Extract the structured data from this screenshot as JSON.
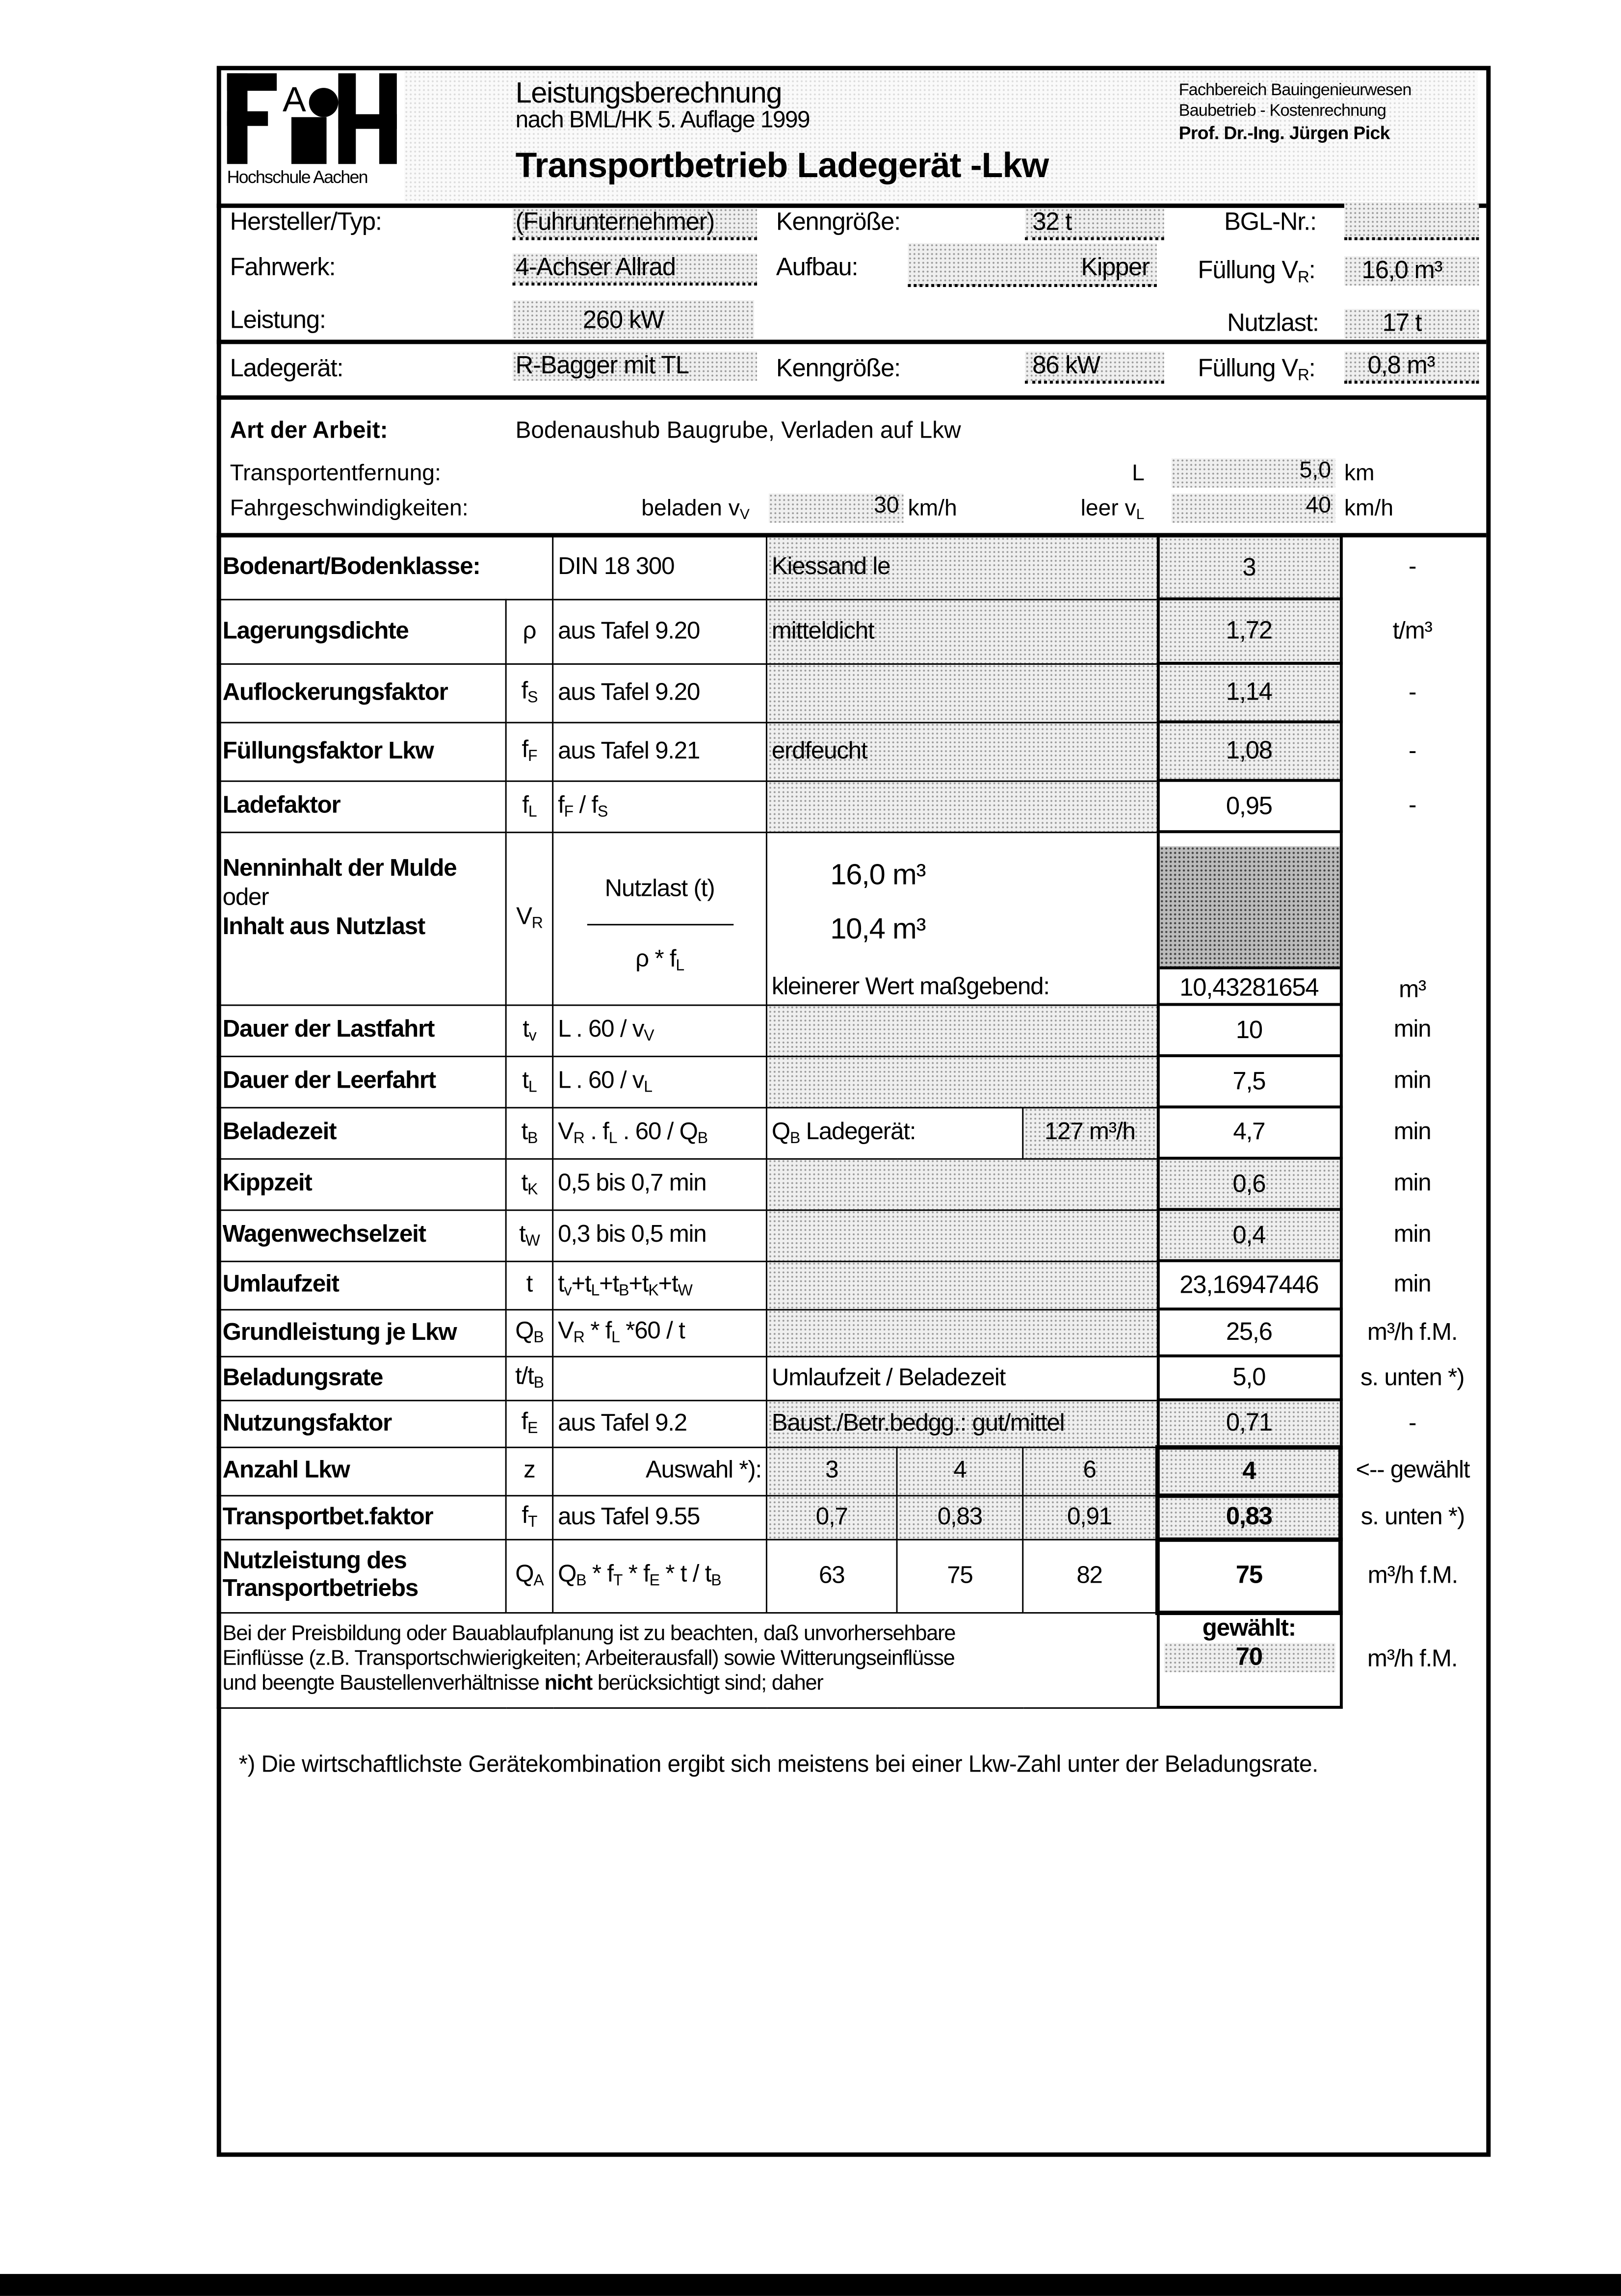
{
  "logo": {
    "letters": "FACH",
    "caption": "Hochschule Aachen"
  },
  "header": {
    "line1": "Leistungsberechnung",
    "line2": "nach BML/HK 5. Auflage 1999",
    "title": "Transportbetrieb Ladegerät -Lkw",
    "dept1": "Fachbereich Bauingenieurwesen",
    "dept2": "Baubetrieb  -  Kostenrechnung",
    "dept3": "Prof. Dr.-Ing. Jürgen Pick"
  },
  "vehicle": {
    "hersteller_label": "Hersteller/Typ:",
    "hersteller": "(Fuhrunternehmer)",
    "kenngroesse_label": "Kenngröße:",
    "kenngroesse": "32  t",
    "bgl_label": "BGL-Nr.:",
    "bgl": "",
    "fahrwerk_label": "Fahrwerk:",
    "fahrwerk": "4-Achser Allrad",
    "aufbau_label": "Aufbau:",
    "aufbau": "Kipper",
    "fuellung_label": "Füllung V",
    "fuellung_sub": "R",
    "fuellung": "16,0  m³",
    "leistung_label": "Leistung:",
    "leistung": "260  kW",
    "nutzlast_label": "Nutzlast:",
    "nutzlast": "17  t"
  },
  "loader": {
    "label": "Ladegerät:",
    "value": "R-Bagger mit TL",
    "kenngroesse_label": "Kenngröße:",
    "kenngroesse": "86  kW",
    "fuellung_label": "Füllung V",
    "fuellung_sub": "R",
    "fuellung": "0,8  m³"
  },
  "work": {
    "art_label": "Art der Arbeit:",
    "art": "Bodenaushub Baugrube, Verladen auf Lkw",
    "entfernung_label": "Transportentfernung:",
    "L_label": "L",
    "L": "5,0",
    "L_unit": "km",
    "speed_label": "Fahrgeschwindigkeiten:",
    "beladen_label": "beladen v",
    "beladen_sub": "V",
    "beladen": "30",
    "beladen_unit": "km/h",
    "leer_label": "leer v",
    "leer_sub": "L",
    "leer": "40",
    "leer_unit": "km/h"
  },
  "rows": [
    {
      "label": "Bodenart/Bodenklasse:",
      "span_label": true,
      "formula": [
        [
          "DIN 18 300",
          ""
        ]
      ],
      "note": "Kiessand le",
      "note_shaded": true,
      "value": "3",
      "value_shaded": true,
      "unit": "-"
    },
    {
      "label": "Lagerungsdichte",
      "sym": [
        [
          "ρ",
          ""
        ]
      ],
      "formula": [
        [
          "aus Tafel 9.20",
          ""
        ]
      ],
      "note": "mitteldicht",
      "note_shaded": true,
      "value": "1,72",
      "value_shaded": true,
      "unit": "t/m³"
    },
    {
      "label": "Auflockerungsfaktor",
      "sym": [
        [
          "f",
          "S"
        ]
      ],
      "formula": [
        [
          "aus Tafel 9.20",
          ""
        ]
      ],
      "note": "",
      "note_shaded": true,
      "value": "1,14",
      "value_shaded": true,
      "unit": "-"
    },
    {
      "label": "Füllungsfaktor Lkw",
      "sym": [
        [
          "f",
          "F"
        ]
      ],
      "formula": [
        [
          "aus Tafel 9.21",
          ""
        ]
      ],
      "note": "erdfeucht",
      "note_shaded": true,
      "value": "1,08",
      "value_shaded": true,
      "unit": "-"
    },
    {
      "label": "Ladefaktor",
      "sym": [
        [
          "f",
          "L"
        ]
      ],
      "formula": [
        [
          "f",
          "F"
        ],
        [
          " / f",
          "S"
        ]
      ],
      "note": "",
      "note_shaded": true,
      "value": "0,95",
      "unit": "-"
    },
    {
      "type": "nenn",
      "label1": "Nenninhalt der Mulde",
      "label2": "oder",
      "label3": "Inhalt aus Nutzlast",
      "sym": [
        [
          "V",
          "R"
        ]
      ],
      "frac_top": "Nutzlast (t)",
      "frac_bot": [
        [
          "ρ * f",
          "L"
        ]
      ],
      "v1": "16,0 m³",
      "v2": "10,4 m³",
      "note": "kleinerer Wert maßgebend:",
      "value": "10,43281654",
      "unit": "m³"
    },
    {
      "label": "Dauer der Lastfahrt",
      "sym": [
        [
          "t",
          "v"
        ]
      ],
      "formula": [
        [
          "L . 60 / v",
          "V"
        ]
      ],
      "note": "",
      "note_shaded": true,
      "value": "10",
      "unit": "min"
    },
    {
      "label": "Dauer der Leerfahrt",
      "sym": [
        [
          "t",
          "L"
        ]
      ],
      "formula": [
        [
          "L . 60 / v",
          "L"
        ]
      ],
      "note": "",
      "note_shaded": true,
      "value": "7,5",
      "unit": "min"
    },
    {
      "label": "Beladezeit",
      "sym": [
        [
          "t",
          "B"
        ]
      ],
      "formula": [
        [
          "V",
          "R"
        ],
        [
          " . f",
          "L"
        ],
        [
          " . 60 / Q",
          "B"
        ]
      ],
      "note_parts": [
        [
          "Q",
          "B"
        ],
        [
          " Ladegerät:",
          ""
        ]
      ],
      "note_value": "127  m³/h",
      "value": "4,7",
      "unit": "min"
    },
    {
      "label": "Kippzeit",
      "sym": [
        [
          "t",
          "K"
        ]
      ],
      "formula": [
        [
          "0,5 bis 0,7 min",
          ""
        ]
      ],
      "note": "",
      "note_shaded": true,
      "value": "0,6",
      "value_shaded": true,
      "unit": "min"
    },
    {
      "label": "Wagenwechselzeit",
      "sym": [
        [
          "t",
          "W"
        ]
      ],
      "formula": [
        [
          "0,3 bis 0,5 min",
          ""
        ]
      ],
      "note": "",
      "note_shaded": true,
      "value": "0,4",
      "value_shaded": true,
      "unit": "min"
    },
    {
      "label": "Umlaufzeit",
      "sym": [
        [
          "t",
          ""
        ]
      ],
      "formula": [
        [
          "t",
          "v"
        ],
        [
          "+t",
          "L"
        ],
        [
          "+t",
          "B"
        ],
        [
          "+t",
          "K"
        ],
        [
          "+t",
          "W"
        ]
      ],
      "note": "",
      "note_shaded": true,
      "value": "23,16947446",
      "unit": "min"
    },
    {
      "label": "Grundleistung je Lkw",
      "sym": [
        [
          "Q",
          "B"
        ]
      ],
      "formula": [
        [
          "V",
          "R"
        ],
        [
          " * f",
          "L"
        ],
        [
          " *60 / t",
          ""
        ]
      ],
      "note": "",
      "note_shaded": true,
      "value": "25,6",
      "unit": "m³/h f.M."
    },
    {
      "label": "Beladungsrate",
      "sym": [
        [
          "t/t",
          "B"
        ]
      ],
      "formula": [
        [
          "",
          ""
        ]
      ],
      "note": "Umlaufzeit / Beladezeit",
      "value": "5,0",
      "unit": "s. unten *)"
    },
    {
      "label": "Nutzungsfaktor",
      "sym": [
        [
          "f",
          "E"
        ]
      ],
      "formula": [
        [
          "aus Tafel 9.2",
          ""
        ]
      ],
      "note": "Baust./Betr.bedgg.: gut/mittel",
      "note_shaded": true,
      "value": "0,71",
      "value_shaded": true,
      "unit": "-"
    },
    {
      "type": "multi",
      "label": "Anzahl Lkw",
      "sym": [
        [
          "z",
          ""
        ]
      ],
      "formula": [
        [
          "Auswahl *):",
          ""
        ]
      ],
      "formula_right": true,
      "options": [
        "3",
        "4",
        "6"
      ],
      "shaded": true,
      "value": "4",
      "unit": "<-- gewählt"
    },
    {
      "type": "multi",
      "label": "Transportbet.faktor",
      "sym": [
        [
          "f",
          "T"
        ]
      ],
      "formula": [
        [
          "aus Tafel 9.55",
          ""
        ]
      ],
      "options": [
        "0,7",
        "0,83",
        "0,91"
      ],
      "shaded": true,
      "value": "0,83",
      "unit": "s. unten *)"
    },
    {
      "type": "multi",
      "label": "Nutzleistung des Transportbetriebs",
      "sym": [
        [
          "Q",
          "A"
        ]
      ],
      "formula": [
        [
          "Q",
          "B"
        ],
        [
          " * f",
          "T"
        ],
        [
          " * f",
          "E"
        ],
        [
          " * t / t",
          "B"
        ]
      ],
      "options": [
        "63",
        "75",
        "82"
      ],
      "value": "75",
      "unit": "m³/h f.M."
    },
    {
      "type": "final",
      "note_a": "Bei der Preisbildung oder Bauablaufplanung ist zu beachten, daß unvorhersehbare",
      "note_b": "Einflüsse (z.B. Transportschwierigkeiten; Arbeiterausfall) sowie Witterungseinflüsse",
      "note_c": "und beengte Baustellenverhältnisse ",
      "note_bold": "nicht",
      "note_d": " berücksichtigt sind; daher",
      "chosen_label": "gewählt:",
      "value": "70",
      "unit": "m³/h f.M."
    }
  ],
  "footnote": "*) Die wirtschaftlichste Gerätekombination ergibt sich meistens bei einer Lkw-Zahl unter der Beladungsrate."
}
